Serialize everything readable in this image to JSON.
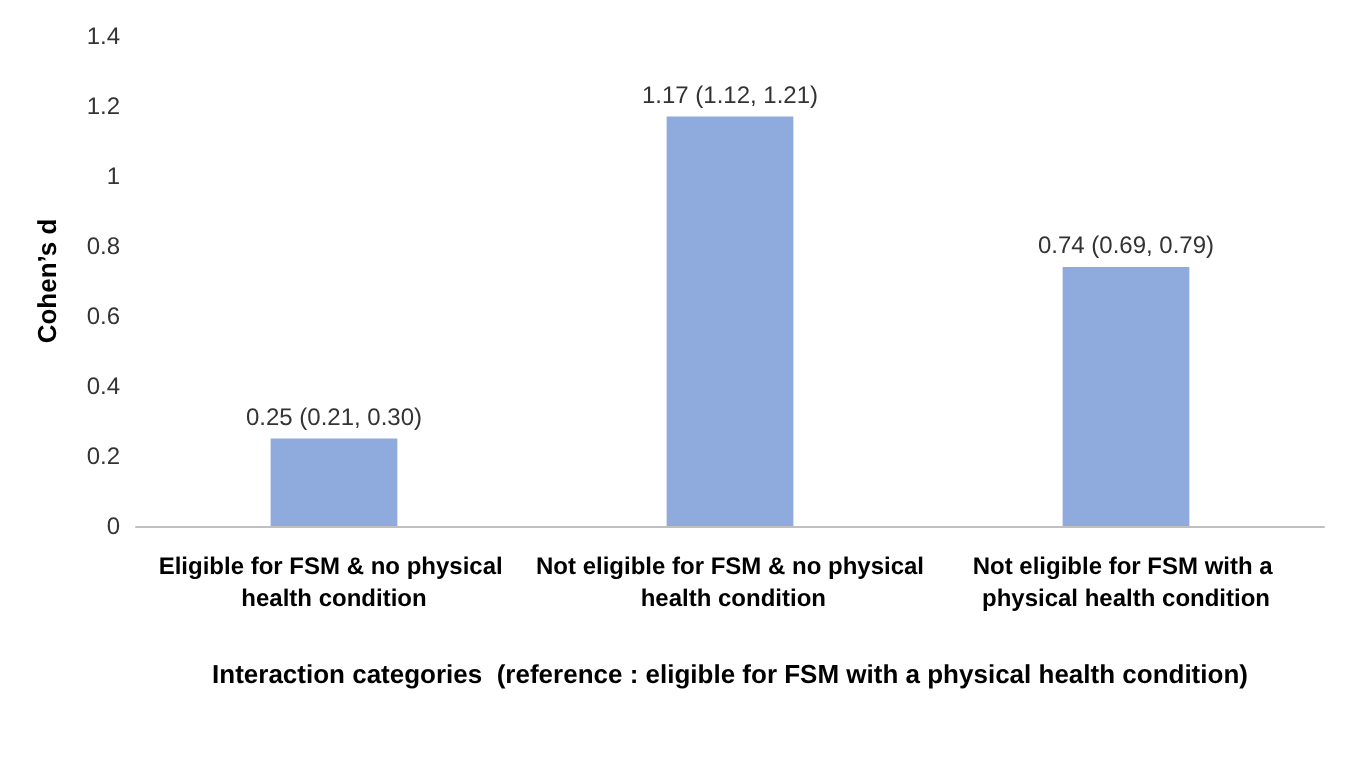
{
  "chart_data": {
    "type": "bar",
    "categories": [
      "Eligible for FSM & no physical health condition",
      "Not eligible for FSM & no physical health condition",
      "Not eligible for FSM with a physical health condition"
    ],
    "values": [
      0.25,
      1.17,
      0.74
    ],
    "value_labels": [
      "0.25 (0.21, 0.30)",
      "1.17 (1.12, 1.21)",
      "0.74 (0.69, 0.79)"
    ],
    "color": "#8faadc",
    "xlabel": "Interaction categories  (reference : eligible for FSM with a physical health condition)",
    "ylabel": "Cohen’s d",
    "ylim": [
      0,
      1.4
    ],
    "yticks": [
      0,
      0.2,
      0.4,
      0.6,
      0.8,
      1,
      1.2,
      1.4
    ],
    "grid": false
  }
}
